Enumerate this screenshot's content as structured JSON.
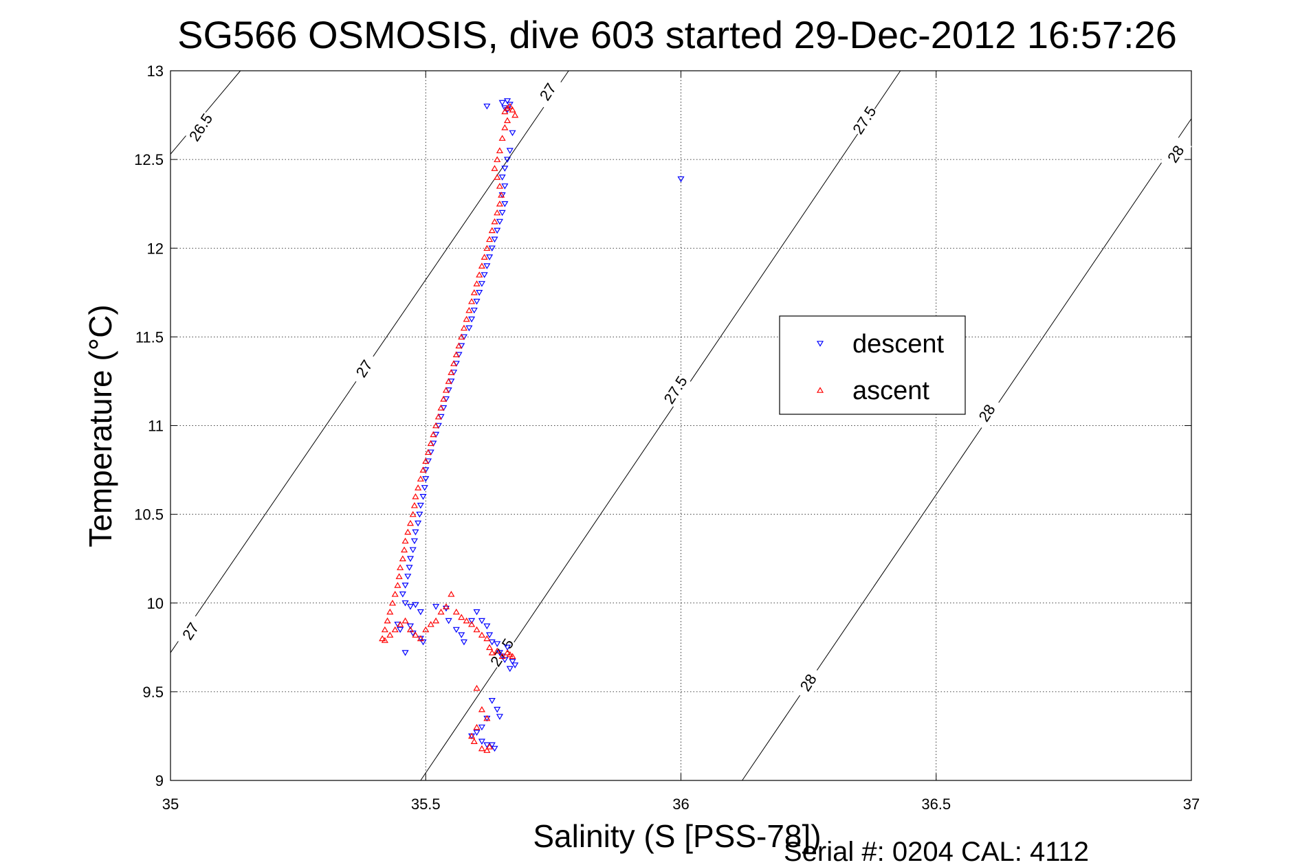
{
  "chart_data": {
    "type": "scatter",
    "title": "SG566 OSMOSIS, dive 603 started 29-Dec-2012 16:57:26",
    "xlabel": "Salinity (S [PSS-78])",
    "ylabel": "Temperature (°C)",
    "xlim": [
      35,
      37
    ],
    "ylim": [
      9,
      13
    ],
    "xticks": [
      35,
      35.5,
      36,
      36.5,
      37
    ],
    "xtick_labels": [
      "35",
      "35.5",
      "36",
      "36.5",
      "37"
    ],
    "yticks": [
      9,
      9.5,
      10,
      10.5,
      11,
      11.5,
      12,
      12.5,
      13
    ],
    "ytick_labels": [
      "9",
      "9.5",
      "10",
      "10.5",
      "11",
      "11.5",
      "12",
      "12.5",
      "13"
    ],
    "grid": true,
    "legend_position": "right-center",
    "isopycnal_lines": [
      {
        "label": "26.5",
        "points": [
          [
            35.0,
            12.53
          ],
          [
            35.137,
            13.0
          ]
        ],
        "label_at": [
          35.06,
          12.68
        ]
      },
      {
        "label": "27",
        "points": [
          [
            35.0,
            9.72
          ],
          [
            35.78,
            13.0
          ]
        ],
        "label_at": [
          35.04,
          9.84
        ]
      },
      {
        "label": "27",
        "points": [
          [
            35.38,
            11.3
          ],
          [
            35.42,
            11.5
          ]
        ],
        "label_at": [
          35.38,
          11.32
        ],
        "label_only": true
      },
      {
        "label": "27",
        "points": [
          [
            35.74,
            12.88
          ],
          [
            35.74,
            12.88
          ]
        ],
        "label_at": [
          35.74,
          12.88
        ],
        "label_only": true
      },
      {
        "label": "27.5",
        "points": [
          [
            35.49,
            9.0
          ],
          [
            36.43,
            13.0
          ]
        ],
        "label_at": [
          35.99,
          11.2
        ]
      },
      {
        "label": "27.5",
        "points": [
          [
            36.36,
            12.72
          ],
          [
            36.36,
            12.72
          ]
        ],
        "label_at": [
          36.36,
          12.72
        ],
        "label_only": true
      },
      {
        "label": "27.5",
        "points": [
          [
            35.65,
            9.68
          ],
          [
            35.65,
            9.68
          ]
        ],
        "label_at": [
          35.65,
          9.72
        ],
        "label_only": true
      },
      {
        "label": "28",
        "points": [
          [
            36.12,
            9.0
          ],
          [
            37.0,
            12.73
          ]
        ],
        "label_at": [
          36.25,
          9.55
        ]
      },
      {
        "label": "28",
        "points": [
          [
            36.6,
            11.07
          ],
          [
            36.6,
            11.07
          ]
        ],
        "label_at": [
          36.6,
          11.07
        ],
        "label_only": true
      },
      {
        "label": "28",
        "points": [
          [
            36.97,
            12.53
          ],
          [
            36.97,
            12.53
          ]
        ],
        "label_at": [
          36.97,
          12.53
        ],
        "label_only": true
      }
    ],
    "series": [
      {
        "name": "descent",
        "color": "#0000ff",
        "marker": "triangle-down",
        "points": [
          [
            35.62,
            12.8
          ],
          [
            35.65,
            12.82
          ],
          [
            35.66,
            12.83
          ],
          [
            35.655,
            12.79
          ],
          [
            35.665,
            12.81
          ],
          [
            35.66,
            12.78
          ],
          [
            35.67,
            12.65
          ],
          [
            35.665,
            12.55
          ],
          [
            35.66,
            12.5
          ],
          [
            35.655,
            12.45
          ],
          [
            35.65,
            12.4
          ],
          [
            35.655,
            12.35
          ],
          [
            35.65,
            12.3
          ],
          [
            35.655,
            12.25
          ],
          [
            35.65,
            12.2
          ],
          [
            35.645,
            12.15
          ],
          [
            35.64,
            12.1
          ],
          [
            35.635,
            12.05
          ],
          [
            35.63,
            12.0
          ],
          [
            35.625,
            11.95
          ],
          [
            35.62,
            11.9
          ],
          [
            35.615,
            11.85
          ],
          [
            35.61,
            11.8
          ],
          [
            35.605,
            11.75
          ],
          [
            35.6,
            11.7
          ],
          [
            35.595,
            11.65
          ],
          [
            35.59,
            11.6
          ],
          [
            35.585,
            11.55
          ],
          [
            35.575,
            11.5
          ],
          [
            35.57,
            11.45
          ],
          [
            35.565,
            11.4
          ],
          [
            35.56,
            11.35
          ],
          [
            35.555,
            11.3
          ],
          [
            35.55,
            11.25
          ],
          [
            35.545,
            11.2
          ],
          [
            35.54,
            11.15
          ],
          [
            35.535,
            11.1
          ],
          [
            35.53,
            11.05
          ],
          [
            35.525,
            11.0
          ],
          [
            35.52,
            10.95
          ],
          [
            35.515,
            10.9
          ],
          [
            35.51,
            10.85
          ],
          [
            35.505,
            10.8
          ],
          [
            35.5,
            10.75
          ],
          [
            35.5,
            10.7
          ],
          [
            35.498,
            10.65
          ],
          [
            35.495,
            10.6
          ],
          [
            35.49,
            10.55
          ],
          [
            35.488,
            10.5
          ],
          [
            35.485,
            10.45
          ],
          [
            35.48,
            10.4
          ],
          [
            35.478,
            10.35
          ],
          [
            35.475,
            10.3
          ],
          [
            35.47,
            10.25
          ],
          [
            35.468,
            10.2
          ],
          [
            35.465,
            10.15
          ],
          [
            35.46,
            10.1
          ],
          [
            35.455,
            10.05
          ],
          [
            35.46,
            10.0
          ],
          [
            35.47,
            9.98
          ],
          [
            35.48,
            9.99
          ],
          [
            35.49,
            9.95
          ],
          [
            35.445,
            9.88
          ],
          [
            35.45,
            9.85
          ],
          [
            35.47,
            9.87
          ],
          [
            35.475,
            9.83
          ],
          [
            35.49,
            9.8
          ],
          [
            35.495,
            9.78
          ],
          [
            35.46,
            9.72
          ],
          [
            35.52,
            9.98
          ],
          [
            35.54,
            9.97
          ],
          [
            35.545,
            9.9
          ],
          [
            35.56,
            9.85
          ],
          [
            35.57,
            9.82
          ],
          [
            35.575,
            9.78
          ],
          [
            35.59,
            9.9
          ],
          [
            35.6,
            9.95
          ],
          [
            35.61,
            9.9
          ],
          [
            35.62,
            9.87
          ],
          [
            35.625,
            9.82
          ],
          [
            35.63,
            9.78
          ],
          [
            35.64,
            9.77
          ],
          [
            35.645,
            9.72
          ],
          [
            35.65,
            9.7
          ],
          [
            35.655,
            9.68
          ],
          [
            35.66,
            9.75
          ],
          [
            35.67,
            9.67
          ],
          [
            35.675,
            9.65
          ],
          [
            35.665,
            9.63
          ],
          [
            35.63,
            9.45
          ],
          [
            35.64,
            9.4
          ],
          [
            35.645,
            9.36
          ],
          [
            35.62,
            9.35
          ],
          [
            35.61,
            9.3
          ],
          [
            35.6,
            9.27
          ],
          [
            35.59,
            9.25
          ],
          [
            35.61,
            9.22
          ],
          [
            35.62,
            9.2
          ],
          [
            35.63,
            9.2
          ],
          [
            35.635,
            9.18
          ],
          [
            36.0,
            12.39
          ]
        ]
      },
      {
        "name": "ascent",
        "color": "#ff0000",
        "marker": "triangle-up",
        "points": [
          [
            35.66,
            12.79
          ],
          [
            35.67,
            12.78
          ],
          [
            35.655,
            12.77
          ],
          [
            35.665,
            12.8
          ],
          [
            35.675,
            12.75
          ],
          [
            35.66,
            12.72
          ],
          [
            35.655,
            12.68
          ],
          [
            35.65,
            12.62
          ],
          [
            35.645,
            12.55
          ],
          [
            35.64,
            12.5
          ],
          [
            35.635,
            12.45
          ],
          [
            35.64,
            12.4
          ],
          [
            35.645,
            12.35
          ],
          [
            35.648,
            12.3
          ],
          [
            35.645,
            12.25
          ],
          [
            35.64,
            12.2
          ],
          [
            35.635,
            12.15
          ],
          [
            35.63,
            12.1
          ],
          [
            35.625,
            12.05
          ],
          [
            35.62,
            12.0
          ],
          [
            35.615,
            11.95
          ],
          [
            35.61,
            11.9
          ],
          [
            35.605,
            11.85
          ],
          [
            35.6,
            11.8
          ],
          [
            35.595,
            11.75
          ],
          [
            35.59,
            11.7
          ],
          [
            35.585,
            11.65
          ],
          [
            35.58,
            11.6
          ],
          [
            35.575,
            11.55
          ],
          [
            35.57,
            11.5
          ],
          [
            35.565,
            11.45
          ],
          [
            35.56,
            11.4
          ],
          [
            35.555,
            11.35
          ],
          [
            35.55,
            11.3
          ],
          [
            35.545,
            11.25
          ],
          [
            35.54,
            11.2
          ],
          [
            35.535,
            11.15
          ],
          [
            35.53,
            11.1
          ],
          [
            35.525,
            11.05
          ],
          [
            35.52,
            11.0
          ],
          [
            35.515,
            10.95
          ],
          [
            35.51,
            10.9
          ],
          [
            35.505,
            10.85
          ],
          [
            35.5,
            10.8
          ],
          [
            35.495,
            10.75
          ],
          [
            35.49,
            10.7
          ],
          [
            35.485,
            10.65
          ],
          [
            35.48,
            10.6
          ],
          [
            35.478,
            10.55
          ],
          [
            35.475,
            10.5
          ],
          [
            35.47,
            10.45
          ],
          [
            35.465,
            10.4
          ],
          [
            35.46,
            10.35
          ],
          [
            35.458,
            10.3
          ],
          [
            35.455,
            10.25
          ],
          [
            35.45,
            10.2
          ],
          [
            35.448,
            10.15
          ],
          [
            35.445,
            10.1
          ],
          [
            35.44,
            10.05
          ],
          [
            35.435,
            10.0
          ],
          [
            35.43,
            9.95
          ],
          [
            35.425,
            9.9
          ],
          [
            35.42,
            9.85
          ],
          [
            35.415,
            9.8
          ],
          [
            35.42,
            9.79
          ],
          [
            35.43,
            9.82
          ],
          [
            35.44,
            9.85
          ],
          [
            35.45,
            9.88
          ],
          [
            35.46,
            9.9
          ],
          [
            35.47,
            9.85
          ],
          [
            35.48,
            9.82
          ],
          [
            35.49,
            9.8
          ],
          [
            35.5,
            9.85
          ],
          [
            35.51,
            9.88
          ],
          [
            35.52,
            9.9
          ],
          [
            35.53,
            9.95
          ],
          [
            35.54,
            9.98
          ],
          [
            35.55,
            10.05
          ],
          [
            35.56,
            9.95
          ],
          [
            35.57,
            9.92
          ],
          [
            35.58,
            9.9
          ],
          [
            35.59,
            9.88
          ],
          [
            35.6,
            9.85
          ],
          [
            35.61,
            9.82
          ],
          [
            35.62,
            9.8
          ],
          [
            35.625,
            9.75
          ],
          [
            35.63,
            9.72
          ],
          [
            35.64,
            9.73
          ],
          [
            35.65,
            9.7
          ],
          [
            35.66,
            9.72
          ],
          [
            35.665,
            9.71
          ],
          [
            35.67,
            9.7
          ],
          [
            35.6,
            9.52
          ],
          [
            35.61,
            9.4
          ],
          [
            35.62,
            9.35
          ],
          [
            35.6,
            9.3
          ],
          [
            35.59,
            9.25
          ],
          [
            35.595,
            9.22
          ],
          [
            35.61,
            9.18
          ],
          [
            35.62,
            9.17
          ],
          [
            35.625,
            9.19
          ]
        ]
      }
    ],
    "legend": [
      {
        "label": "descent",
        "color": "#0000ff",
        "marker": "triangle-down"
      },
      {
        "label": "ascent",
        "color": "#ff0000",
        "marker": "triangle-up"
      }
    ]
  },
  "footer": {
    "serial_text": "Serial #: 0204  CAL: 4112"
  }
}
